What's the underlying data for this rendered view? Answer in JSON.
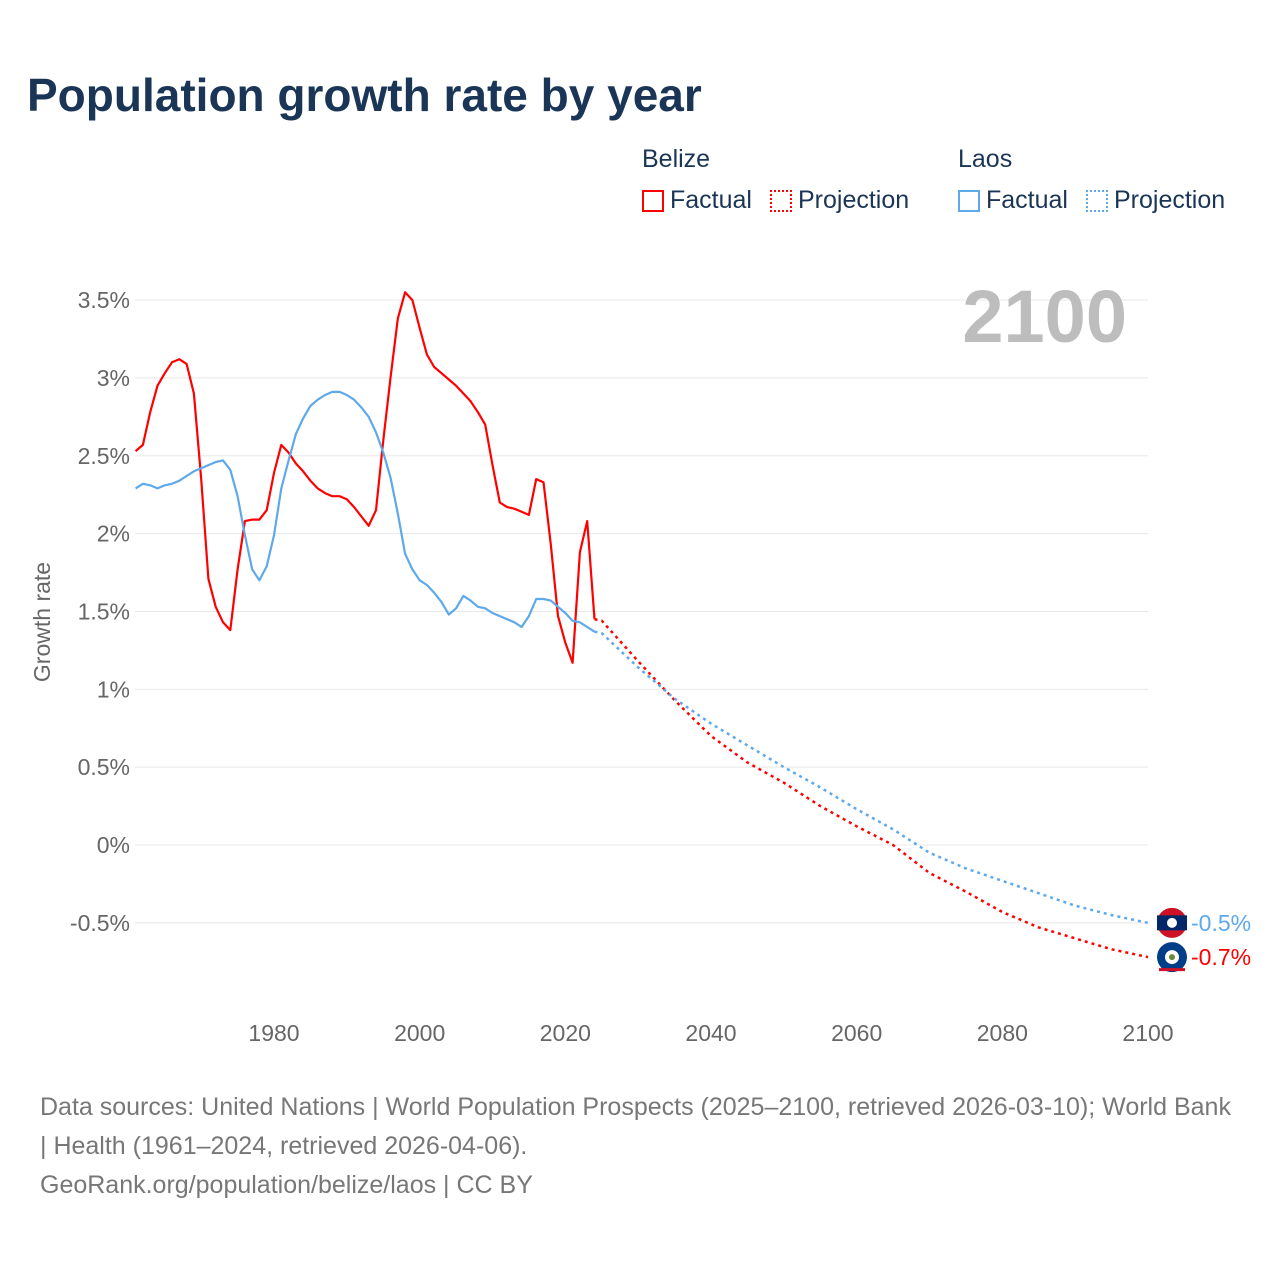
{
  "title": "Population growth rate by year",
  "legend": {
    "groups": [
      {
        "name": "Belize",
        "factual": "Factual",
        "projection": "Projection",
        "color": "#ff0000"
      },
      {
        "name": "Laos",
        "factual": "Factual",
        "projection": "Projection",
        "color": "#5ea9ea"
      }
    ]
  },
  "year_label": "2100",
  "footer": {
    "sources": "Data sources: United Nations | World Population Prospects (2025–2100, retrieved 2026-03-10); World Bank | Health (1961–2024, retrieved 2026-04-06).",
    "credit": "GeoRank.org/population/belize/laos | CC BY"
  },
  "chart_data": {
    "type": "line",
    "title": "Population growth rate by year",
    "xlabel": "",
    "ylabel": "Growth rate",
    "xlim": [
      1961,
      2100
    ],
    "ylim": [
      -0.9,
      3.75
    ],
    "xticks": [
      1980,
      2000,
      2020,
      2040,
      2060,
      2080,
      2100
    ],
    "yticks": [
      -0.5,
      0,
      0.5,
      1,
      1.5,
      2,
      2.5,
      3,
      3.5
    ],
    "ytick_labels": [
      "-0.5%",
      "0%",
      "0.5%",
      "1%",
      "1.5%",
      "2%",
      "2.5%",
      "3%",
      "3.5%"
    ],
    "grid": true,
    "legend_position": "top-right",
    "series": [
      {
        "name": "Belize",
        "color": "#ff0000",
        "end_label": "-0.7%",
        "factual": {
          "x_start": 1961,
          "values": [
            2.53,
            2.57,
            2.78,
            2.95,
            3.03,
            3.1,
            3.12,
            3.09,
            2.9,
            2.35,
            1.71,
            1.53,
            1.43,
            1.38,
            1.77,
            2.08,
            2.09,
            2.09,
            2.15,
            2.39,
            2.57,
            2.52,
            2.45,
            2.4,
            2.34,
            2.29,
            2.26,
            2.24,
            2.24,
            2.22,
            2.17,
            2.11,
            2.05,
            2.15,
            2.6,
            3.0,
            3.38,
            3.55,
            3.5,
            3.32,
            3.15,
            3.07,
            3.03,
            2.99,
            2.95,
            2.9,
            2.85,
            2.78,
            2.7,
            2.44,
            2.2,
            2.17,
            2.16,
            2.14,
            2.12,
            2.35,
            2.33,
            1.93,
            1.47,
            1.3,
            1.17,
            1.88,
            2.08,
            1.45
          ]
        },
        "projection": {
          "x": [
            2024,
            2025,
            2030,
            2035,
            2040,
            2045,
            2050,
            2055,
            2060,
            2065,
            2070,
            2075,
            2080,
            2085,
            2090,
            2095,
            2100
          ],
          "values": [
            1.45,
            1.44,
            1.18,
            0.93,
            0.7,
            0.53,
            0.4,
            0.25,
            0.12,
            0.0,
            -0.18,
            -0.3,
            -0.43,
            -0.53,
            -0.6,
            -0.67,
            -0.72
          ]
        }
      },
      {
        "name": "Laos",
        "color": "#5ea9ea",
        "end_label": "-0.5%",
        "factual": {
          "x_start": 1961,
          "values": [
            2.29,
            2.32,
            2.31,
            2.29,
            2.31,
            2.32,
            2.34,
            2.37,
            2.4,
            2.42,
            2.44,
            2.46,
            2.47,
            2.41,
            2.24,
            1.99,
            1.77,
            1.7,
            1.79,
            1.99,
            2.29,
            2.47,
            2.64,
            2.74,
            2.82,
            2.86,
            2.89,
            2.91,
            2.91,
            2.89,
            2.86,
            2.81,
            2.75,
            2.65,
            2.52,
            2.36,
            2.13,
            1.87,
            1.77,
            1.7,
            1.67,
            1.62,
            1.56,
            1.48,
            1.52,
            1.6,
            1.57,
            1.53,
            1.52,
            1.49,
            1.47,
            1.45,
            1.43,
            1.4,
            1.47,
            1.58,
            1.58,
            1.57,
            1.53,
            1.49,
            1.44,
            1.43,
            1.4,
            1.37
          ]
        },
        "projection": {
          "x": [
            2024,
            2025,
            2030,
            2035,
            2040,
            2045,
            2050,
            2055,
            2060,
            2065,
            2070,
            2075,
            2080,
            2085,
            2090,
            2095,
            2100
          ],
          "values": [
            1.37,
            1.36,
            1.14,
            0.94,
            0.78,
            0.64,
            0.5,
            0.37,
            0.23,
            0.1,
            -0.05,
            -0.15,
            -0.23,
            -0.31,
            -0.39,
            -0.45,
            -0.5
          ]
        }
      }
    ]
  }
}
